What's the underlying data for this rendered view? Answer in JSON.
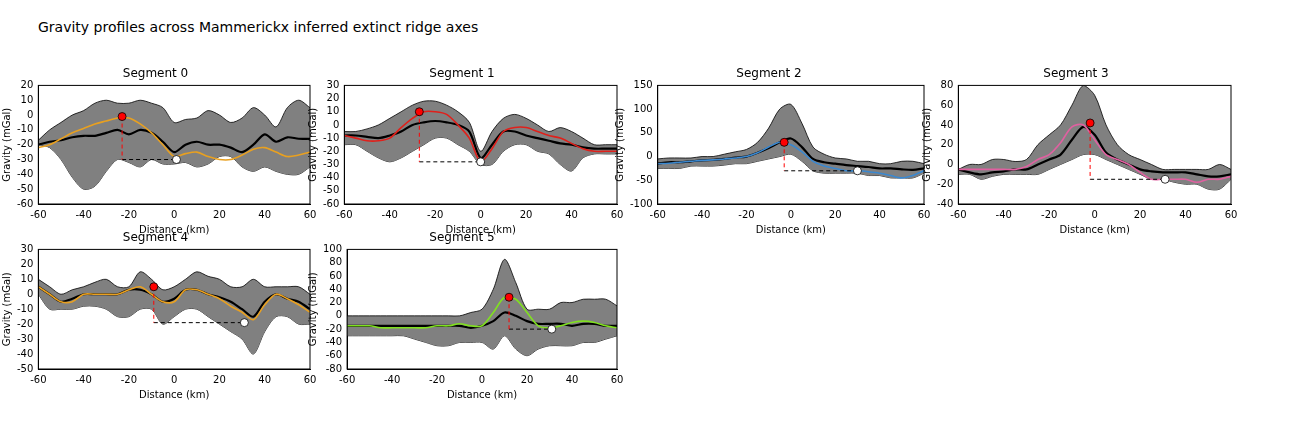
{
  "title": "Gravity profiles across Mammerickx inferred extinct ridge axes",
  "chart_data": [
    {
      "type": "line",
      "title": "Segment 0",
      "x_label": "Distance (km)",
      "y_label": "Gravity (mGal)",
      "xlim": [
        -60,
        60
      ],
      "xticks": [
        -60,
        -40,
        -20,
        0,
        20,
        40,
        60
      ],
      "ylim": [
        -60,
        20
      ],
      "yticks": [
        -60,
        -50,
        -40,
        -30,
        -20,
        -10,
        0,
        10,
        20
      ],
      "grid": false,
      "x": [
        -60,
        -55,
        -50,
        -45,
        -40,
        -35,
        -30,
        -25,
        -20,
        -15,
        -10,
        -5,
        0,
        5,
        10,
        15,
        20,
        25,
        30,
        35,
        40,
        45,
        50,
        55,
        60
      ],
      "band": {
        "color": "#808080",
        "upper": [
          -17,
          -10,
          -5,
          0,
          3,
          8,
          10,
          8,
          8,
          10,
          8,
          5,
          -5,
          -3,
          -2,
          3,
          0,
          -5,
          -2,
          5,
          0,
          -8,
          5,
          10,
          5
        ],
        "lower": [
          -20,
          -22,
          -30,
          -42,
          -50,
          -48,
          -38,
          -30,
          -32,
          -35,
          -30,
          -33,
          -33,
          -32,
          -35,
          -33,
          -28,
          -28,
          -35,
          -38,
          -35,
          -38,
          -40,
          -40,
          -35
        ]
      },
      "series": [
        {
          "color": "#000000",
          "values": [
            -20,
            -18,
            -17,
            -15,
            -14,
            -14,
            -12,
            -10,
            -13,
            -10,
            -12,
            -18,
            -25,
            -20,
            -18,
            -20,
            -20,
            -22,
            -25,
            -20,
            -13,
            -18,
            -15,
            -16,
            -16
          ]
        },
        {
          "color": "#e8a020",
          "values": [
            -22,
            -20,
            -16,
            -12,
            -9,
            -6,
            -4,
            -2,
            -2,
            -6,
            -12,
            -20,
            -28,
            -26,
            -25,
            -28,
            -30,
            -30,
            -27,
            -23,
            -22,
            -25,
            -28,
            -27,
            -25
          ]
        }
      ],
      "markers": [
        {
          "x": -23,
          "y": -1,
          "color": "#ff0000"
        },
        {
          "x": 1,
          "y": -30,
          "color": "#ffffff"
        }
      ]
    },
    {
      "type": "line",
      "title": "Segment 1",
      "x_label": "Distance (km)",
      "y_label": "Gravity (mGal)",
      "xlim": [
        -60,
        60
      ],
      "xticks": [
        -60,
        -40,
        -20,
        0,
        20,
        40,
        60
      ],
      "ylim": [
        -60,
        30
      ],
      "yticks": [
        -60,
        -50,
        -40,
        -30,
        -20,
        -10,
        0,
        10,
        20,
        30
      ],
      "grid": false,
      "x": [
        -60,
        -55,
        -50,
        -45,
        -40,
        -35,
        -30,
        -25,
        -20,
        -15,
        -10,
        -5,
        0,
        5,
        10,
        15,
        20,
        25,
        30,
        35,
        40,
        45,
        50,
        55,
        60
      ],
      "band": {
        "color": "#808080",
        "upper": [
          -5,
          -5,
          -3,
          0,
          5,
          10,
          15,
          18,
          18,
          15,
          10,
          2,
          -20,
          -5,
          5,
          8,
          5,
          0,
          -5,
          -2,
          -5,
          -10,
          -15,
          -15,
          -15
        ],
        "lower": [
          -15,
          -15,
          -20,
          -25,
          -28,
          -25,
          -20,
          -15,
          -10,
          -10,
          -15,
          -20,
          -30,
          -30,
          -20,
          -15,
          -15,
          -20,
          -22,
          -30,
          -35,
          -25,
          -22,
          -22,
          -22
        ]
      },
      "series": [
        {
          "color": "#000000",
          "values": [
            -8,
            -8,
            -9,
            -10,
            -8,
            -5,
            0,
            2,
            3,
            2,
            0,
            -5,
            -25,
            -15,
            -5,
            -5,
            -8,
            -10,
            -12,
            -14,
            -15,
            -17,
            -18,
            -18,
            -18
          ]
        },
        {
          "color": "#e0201b",
          "values": [
            -8,
            -10,
            -12,
            -12,
            -10,
            -2,
            5,
            10,
            10,
            8,
            0,
            -10,
            -28,
            -18,
            -5,
            -2,
            -2,
            -5,
            -8,
            -10,
            -14,
            -18,
            -20,
            -20,
            -20
          ]
        }
      ],
      "markers": [
        {
          "x": -27,
          "y": 10,
          "color": "#ff0000"
        },
        {
          "x": 0,
          "y": -28,
          "color": "#ffffff"
        }
      ]
    },
    {
      "type": "line",
      "title": "Segment 2",
      "x_label": "Distance (km)",
      "y_label": "Gravity (mGal)",
      "xlim": [
        -60,
        60
      ],
      "xticks": [
        -60,
        -40,
        -20,
        0,
        20,
        40,
        60
      ],
      "ylim": [
        -100,
        150
      ],
      "yticks": [
        -100,
        -50,
        0,
        50,
        100,
        150
      ],
      "grid": false,
      "x": [
        -60,
        -55,
        -50,
        -45,
        -40,
        -35,
        -30,
        -25,
        -20,
        -15,
        -10,
        -5,
        0,
        5,
        10,
        15,
        20,
        25,
        30,
        35,
        40,
        45,
        50,
        55,
        60
      ],
      "band": {
        "color": "#808080",
        "upper": [
          -5,
          -3,
          -3,
          -3,
          0,
          0,
          5,
          10,
          15,
          30,
          60,
          100,
          110,
          70,
          20,
          5,
          -3,
          -5,
          -10,
          -10,
          -15,
          -15,
          -10,
          -10,
          -15
        ],
        "lower": [
          -25,
          -25,
          -25,
          -20,
          -20,
          -20,
          -18,
          -15,
          -15,
          -10,
          -5,
          0,
          5,
          -10,
          -30,
          -35,
          -35,
          -35,
          -35,
          -40,
          -40,
          -45,
          -45,
          -45,
          -35
        ]
      },
      "series": [
        {
          "color": "#000000",
          "values": [
            -15,
            -12,
            -12,
            -10,
            -8,
            -7,
            -5,
            -2,
            0,
            8,
            18,
            30,
            38,
            20,
            -5,
            -12,
            -15,
            -18,
            -20,
            -22,
            -25,
            -25,
            -27,
            -28,
            -25
          ]
        },
        {
          "color": "#3a88d0",
          "values": [
            -15,
            -14,
            -12,
            -10,
            -8,
            -7,
            -5,
            -3,
            0,
            8,
            20,
            30,
            25,
            10,
            -10,
            -20,
            -25,
            -30,
            -30,
            -32,
            -35,
            -40,
            -45,
            -40,
            -30
          ]
        }
      ],
      "markers": [
        {
          "x": -3,
          "y": 30,
          "color": "#ff0000"
        },
        {
          "x": 30,
          "y": -30,
          "color": "#ffffff"
        }
      ]
    },
    {
      "type": "line",
      "title": "Segment 3",
      "x_label": "Distance (km)",
      "y_label": "Gravity (mGal)",
      "xlim": [
        -60,
        60
      ],
      "xticks": [
        -60,
        -40,
        -20,
        0,
        20,
        40,
        60
      ],
      "ylim": [
        -40,
        80
      ],
      "yticks": [
        -40,
        -20,
        0,
        20,
        40,
        60,
        80
      ],
      "grid": false,
      "x": [
        -60,
        -55,
        -50,
        -45,
        -40,
        -35,
        -30,
        -25,
        -20,
        -15,
        -10,
        -5,
        0,
        5,
        10,
        15,
        20,
        25,
        30,
        35,
        40,
        45,
        50,
        55,
        60
      ],
      "band": {
        "color": "#808080",
        "upper": [
          -5,
          0,
          0,
          5,
          5,
          3,
          5,
          20,
          30,
          40,
          60,
          80,
          70,
          40,
          20,
          10,
          5,
          0,
          -5,
          -5,
          -5,
          -5,
          -5,
          0,
          -5
        ],
        "lower": [
          -10,
          -10,
          -15,
          -12,
          -10,
          -10,
          -10,
          -10,
          -5,
          0,
          5,
          10,
          10,
          5,
          0,
          -5,
          -10,
          -15,
          -15,
          -18,
          -20,
          -20,
          -25,
          -25,
          -15
        ]
      },
      "series": [
        {
          "color": "#000000",
          "values": [
            -5,
            -8,
            -10,
            -8,
            -7,
            -5,
            -5,
            0,
            5,
            10,
            25,
            38,
            30,
            12,
            5,
            0,
            -5,
            -7,
            -8,
            -8,
            -8,
            -10,
            -12,
            -12,
            -10
          ]
        },
        {
          "color": "#e060a0",
          "values": [
            -5,
            -5,
            -5,
            -5,
            -5,
            -5,
            -2,
            5,
            10,
            22,
            38,
            40,
            25,
            10,
            5,
            0,
            -8,
            -15,
            -15,
            -15,
            -15,
            -18,
            -15,
            -15,
            -12
          ]
        }
      ],
      "markers": [
        {
          "x": -2,
          "y": 42,
          "color": "#ff0000"
        },
        {
          "x": 31,
          "y": -15,
          "color": "#ffffff"
        }
      ]
    },
    {
      "type": "line",
      "title": "Segment 4",
      "x_label": "Distance (km)",
      "y_label": "Gravity (mGal)",
      "xlim": [
        -60,
        60
      ],
      "xticks": [
        -60,
        -40,
        -20,
        0,
        20,
        40,
        60
      ],
      "ylim": [
        -50,
        30
      ],
      "yticks": [
        -50,
        -40,
        -30,
        -20,
        -10,
        0,
        10,
        20,
        30
      ],
      "grid": false,
      "x": [
        -60,
        -55,
        -50,
        -45,
        -40,
        -35,
        -30,
        -25,
        -20,
        -15,
        -10,
        -5,
        0,
        5,
        10,
        15,
        20,
        25,
        30,
        35,
        40,
        45,
        50,
        55,
        60
      ],
      "band": {
        "color": "#808080",
        "upper": [
          10,
          5,
          0,
          3,
          5,
          8,
          10,
          5,
          5,
          15,
          10,
          3,
          5,
          10,
          15,
          12,
          10,
          5,
          5,
          10,
          5,
          5,
          5,
          5,
          0
        ],
        "lower": [
          0,
          -10,
          -10,
          -10,
          -8,
          -8,
          -10,
          -15,
          -15,
          -10,
          -10,
          -20,
          -15,
          -10,
          -10,
          -15,
          -20,
          -25,
          -30,
          -40,
          -25,
          -15,
          -15,
          -20,
          -20
        ]
      },
      "series": [
        {
          "color": "#000000",
          "values": [
            5,
            0,
            -5,
            -3,
            0,
            0,
            0,
            0,
            3,
            3,
            0,
            -5,
            -3,
            3,
            3,
            0,
            -2,
            -5,
            -10,
            -15,
            -5,
            0,
            -3,
            -5,
            -10
          ]
        },
        {
          "color": "#e8a020",
          "values": [
            5,
            0,
            -5,
            -5,
            0,
            0,
            0,
            0,
            3,
            5,
            0,
            -5,
            -5,
            3,
            3,
            0,
            -3,
            -8,
            -12,
            -17,
            -7,
            0,
            -3,
            -7,
            -12
          ]
        }
      ],
      "markers": [
        {
          "x": -9,
          "y": 5,
          "color": "#ff0000"
        },
        {
          "x": 31,
          "y": -19,
          "color": "#ffffff"
        }
      ]
    },
    {
      "type": "line",
      "title": "Segment 5",
      "x_label": "Distance (km)",
      "y_label": "Gravity (mGal)",
      "xlim": [
        -60,
        60
      ],
      "xticks": [
        -60,
        -40,
        -20,
        0,
        20,
        40,
        60
      ],
      "ylim": [
        -80,
        100
      ],
      "yticks": [
        -80,
        -60,
        -40,
        -20,
        0,
        20,
        40,
        60,
        80,
        100
      ],
      "grid": false,
      "x": [
        -60,
        -55,
        -50,
        -45,
        -40,
        -35,
        -30,
        -25,
        -20,
        -15,
        -10,
        -5,
        0,
        5,
        10,
        15,
        20,
        25,
        30,
        35,
        40,
        45,
        50,
        55,
        60
      ],
      "band": {
        "color": "#808080",
        "upper": [
          0,
          0,
          0,
          0,
          0,
          0,
          0,
          0,
          0,
          0,
          0,
          5,
          10,
          40,
          85,
          50,
          10,
          10,
          10,
          20,
          20,
          25,
          25,
          25,
          15
        ],
        "lower": [
          -30,
          -30,
          -30,
          -30,
          -30,
          -30,
          -35,
          -40,
          -45,
          -45,
          -40,
          -40,
          -40,
          -50,
          -30,
          -50,
          -60,
          -50,
          -45,
          -45,
          -45,
          -40,
          -40,
          -35,
          -30
        ]
      },
      "series": [
        {
          "color": "#000000",
          "values": [
            -15,
            -15,
            -15,
            -15,
            -15,
            -15,
            -15,
            -15,
            -15,
            -15,
            -15,
            -18,
            -15,
            -8,
            5,
            0,
            -8,
            -12,
            -12,
            -12,
            -15,
            -12,
            -12,
            -15,
            -15
          ]
        },
        {
          "color": "#80e020",
          "values": [
            -15,
            -15,
            -15,
            -18,
            -18,
            -18,
            -18,
            -18,
            -15,
            -15,
            -12,
            -15,
            -15,
            5,
            28,
            25,
            5,
            -15,
            -18,
            -15,
            -10,
            -8,
            -10,
            -15,
            -18
          ]
        }
      ],
      "markers": [
        {
          "x": 12,
          "y": 28,
          "color": "#ff0000"
        },
        {
          "x": 31,
          "y": -20,
          "color": "#ffffff"
        }
      ]
    }
  ]
}
